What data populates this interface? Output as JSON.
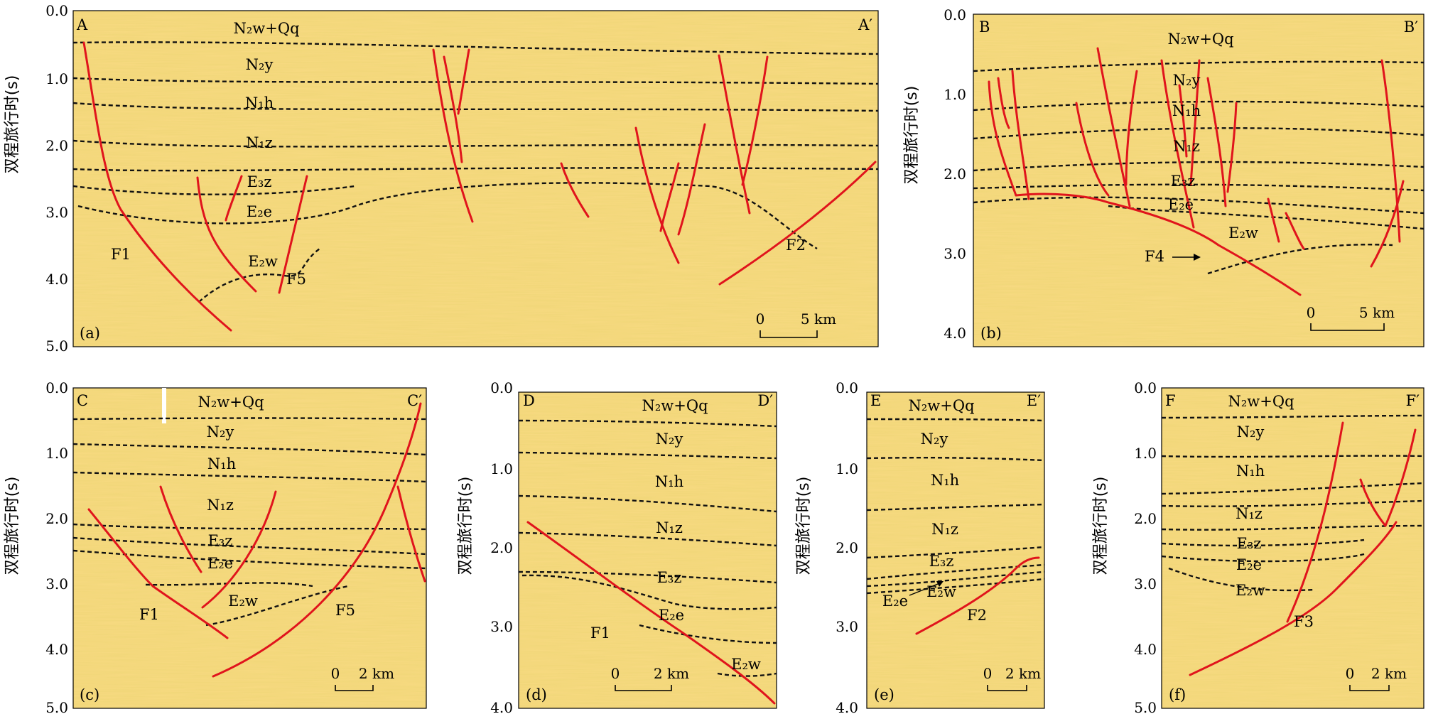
{
  "y_axis_label": "双程旅行时(s)",
  "tick_values_five": [
    "0.0",
    "1.0",
    "2.0",
    "3.0",
    "4.0",
    "5.0"
  ],
  "tick_values_four": [
    "0.0",
    "1.0",
    "2.0",
    "3.0",
    "4.0"
  ],
  "colors": {
    "fault": "#e0141c",
    "horizon": "#111111",
    "seismic_base": "#f2d77a"
  },
  "panels": [
    {
      "id": "a",
      "label": "(a)",
      "corner_left": "A",
      "corner_right": "A′",
      "ticks": "five",
      "scale": {
        "zero": "0",
        "dist": "5 km"
      },
      "units": [
        "N₂w+Qq",
        "N₂y",
        "N₁h",
        "N₁z",
        "E₃z",
        "E₂e",
        "E₂w"
      ],
      "faults": [
        "F1",
        "F5",
        "F2"
      ]
    },
    {
      "id": "b",
      "label": "(b)",
      "corner_left": "B",
      "corner_right": "B′",
      "ticks": "four",
      "scale": {
        "zero": "0",
        "dist": "5 km"
      },
      "units": [
        "N₂w+Qq",
        "N₂y",
        "N₁h",
        "N₁z",
        "E₃z",
        "E₂e",
        "E₂w"
      ],
      "faults": [
        "F4"
      ]
    },
    {
      "id": "c",
      "label": "(c)",
      "corner_left": "C",
      "corner_right": "C′",
      "ticks": "five",
      "scale": {
        "zero": "0",
        "dist": "2 km"
      },
      "units": [
        "N₂w+Qq",
        "N₂y",
        "N₁h",
        "N₁z",
        "E₃z",
        "E₂e",
        "E₂w"
      ],
      "faults": [
        "F1",
        "F5"
      ]
    },
    {
      "id": "d",
      "label": "(d)",
      "corner_left": "D",
      "corner_right": "D′",
      "ticks": "four",
      "scale": {
        "zero": "0",
        "dist": "2 km"
      },
      "units": [
        "N₂w+Qq",
        "N₂y",
        "N₁h",
        "N₁z",
        "E₃z",
        "E₂e",
        "E₂w"
      ],
      "faults": [
        "F1"
      ]
    },
    {
      "id": "e",
      "label": "(e)",
      "corner_left": "E",
      "corner_right": "E′",
      "ticks": "four",
      "scale": {
        "zero": "0",
        "dist": "2 km"
      },
      "units": [
        "N₂w+Qq",
        "N₂y",
        "N₁h",
        "N₁z",
        "E₃z",
        "E₂e",
        "E₂w"
      ],
      "faults": [
        "F2"
      ]
    },
    {
      "id": "f",
      "label": "(f)",
      "corner_left": "F",
      "corner_right": "F′",
      "ticks": "five",
      "scale": {
        "zero": "0",
        "dist": "2 km"
      },
      "units": [
        "N₂w+Qq",
        "N₂y",
        "N₁h",
        "N₁z",
        "E₃z",
        "E₂e",
        "E₂w"
      ],
      "faults": [
        "F3"
      ]
    }
  ]
}
